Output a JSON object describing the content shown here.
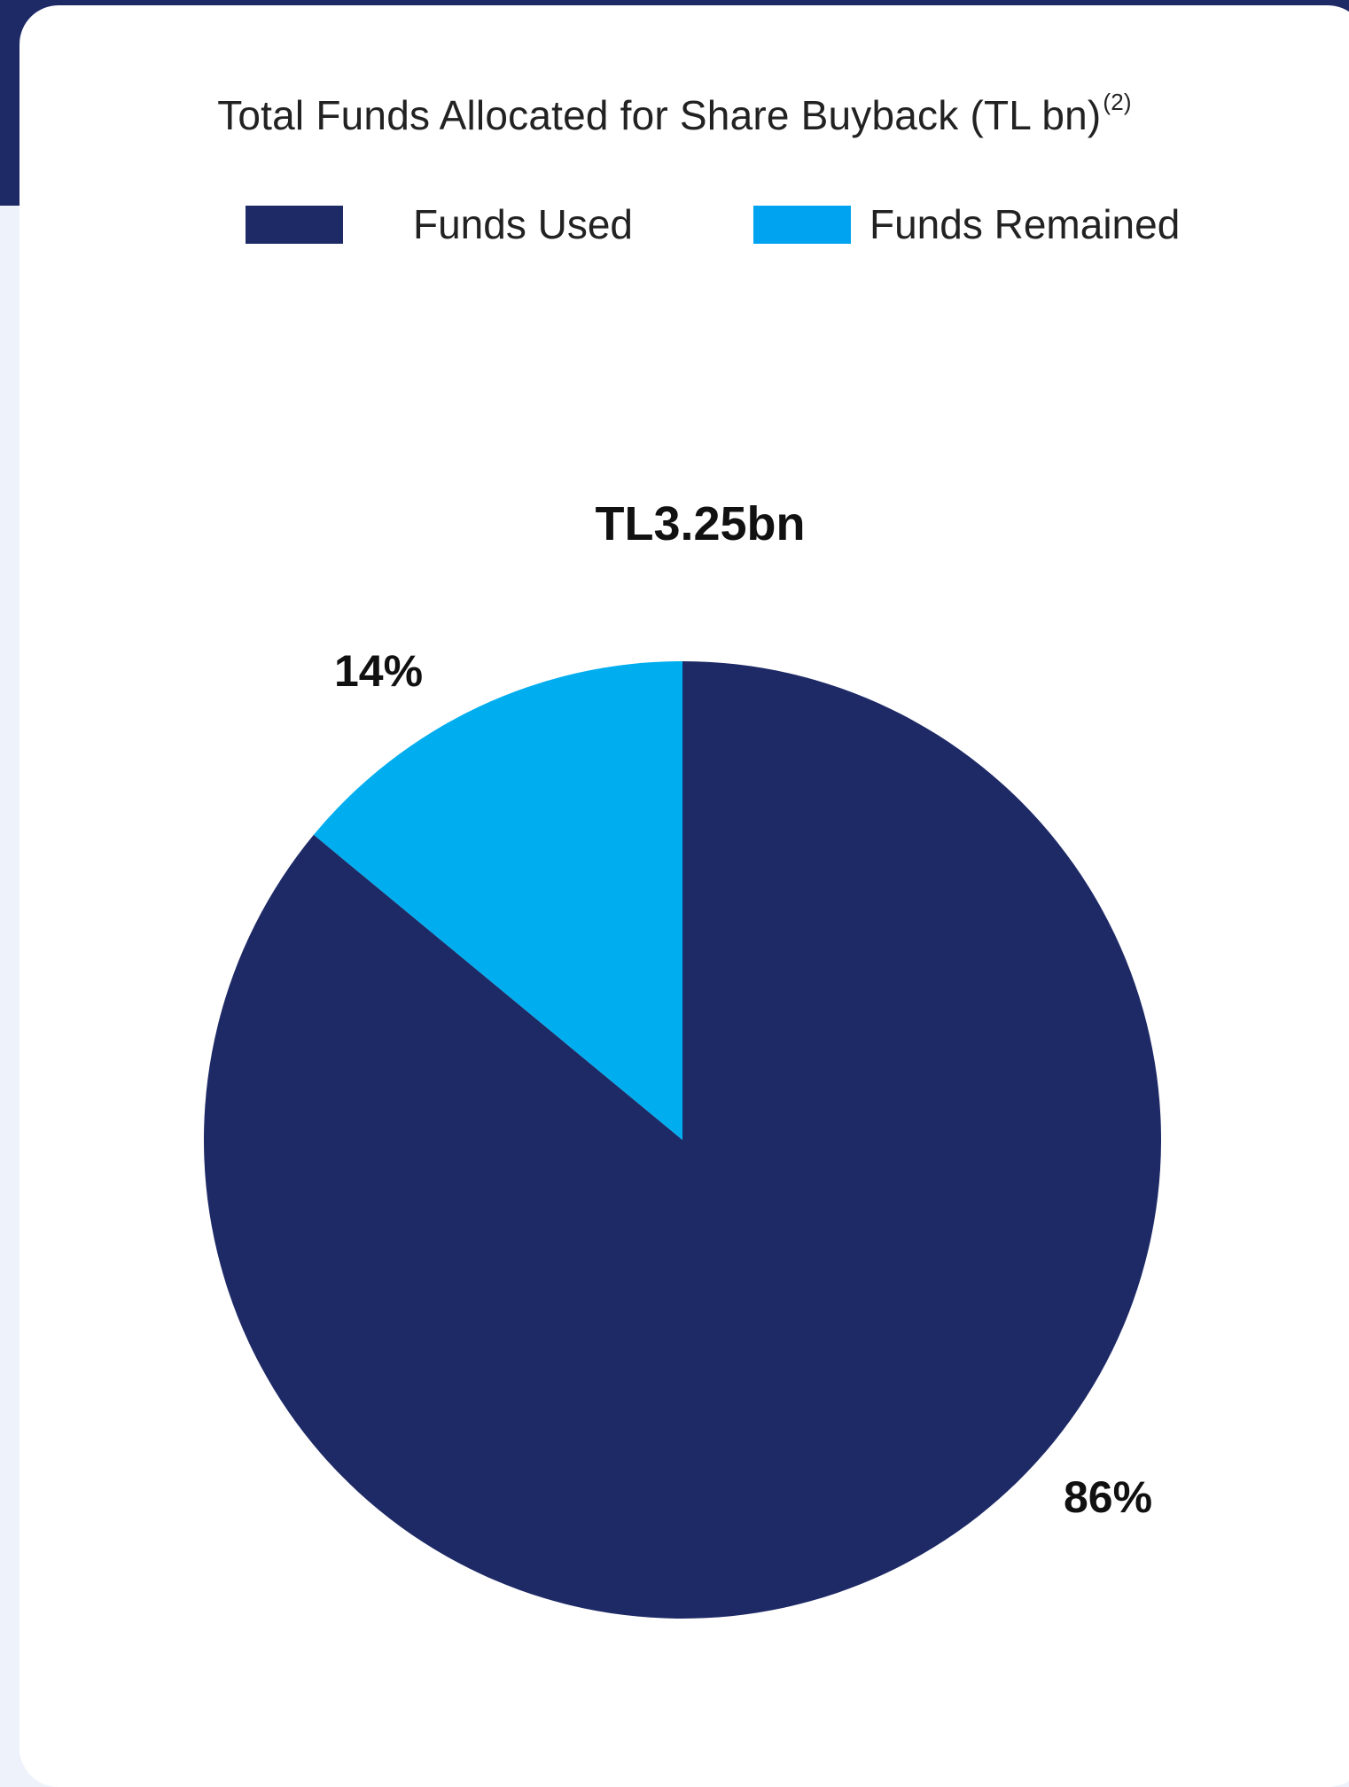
{
  "chart_data": {
    "type": "pie",
    "title": "Total Funds Allocated for Share Buyback (TL bn)",
    "title_note": "(2)",
    "total_label": "TL3.25bn",
    "series": [
      {
        "name": "Funds Used",
        "value": 86,
        "label": "86%",
        "color": "#1e2a66"
      },
      {
        "name": "Funds Remained",
        "value": 14,
        "label": "14%",
        "color": "#00aeef"
      }
    ],
    "legend": {
      "position": "top",
      "items": [
        {
          "label": "Funds Used",
          "color": "#1e2a66"
        },
        {
          "label": "Funds Remained",
          "color": "#00a3ef"
        }
      ]
    }
  },
  "colors": {
    "frame": "#1e2a66",
    "background": "#eef3fb",
    "card": "#ffffff"
  }
}
